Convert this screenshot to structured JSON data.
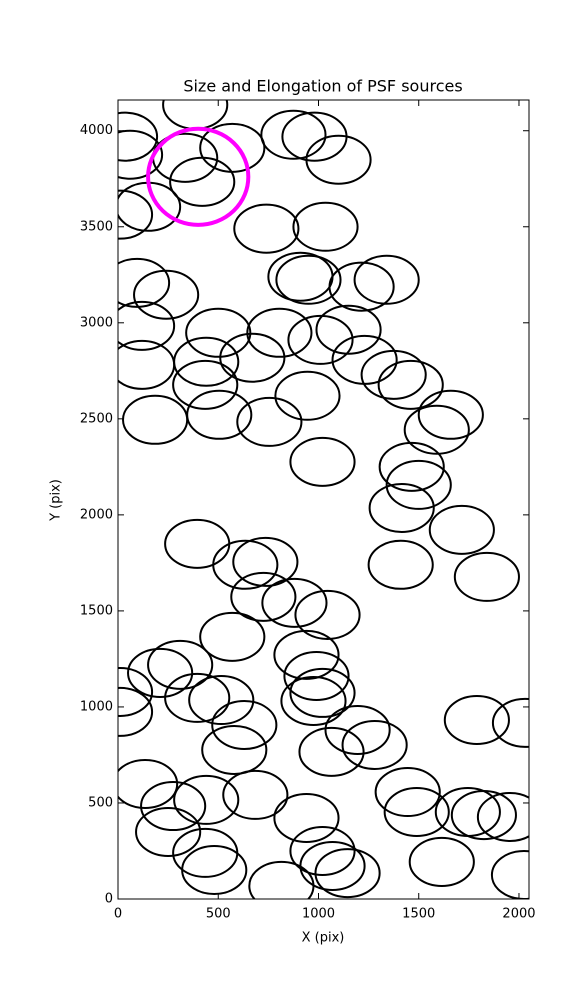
{
  "chart_data": {
    "type": "scatter",
    "marker": "ellipse",
    "title": "Size and Elongation of PSF sources",
    "x_label": "X (pix)",
    "y_label": "Y (pix)",
    "xlim": [
      0,
      2050
    ],
    "ylim": [
      0,
      4160
    ],
    "xticks": [
      0,
      500,
      1000,
      1500,
      2000
    ],
    "yticks": [
      0,
      500,
      1000,
      1500,
      2000,
      2500,
      3000,
      3500,
      4000
    ],
    "series": [
      {
        "color": "#000000",
        "ellipse_width": 320,
        "ellipse_height": 250,
        "x": [
          385,
          35,
          60,
          335,
          570,
          420,
          875,
          980,
          1100,
          10,
          150,
          740,
          1035,
          95,
          240,
          910,
          950,
          1215,
          1340,
          120,
          500,
          805,
          1010,
          1150,
          1230,
          120,
          440,
          670,
          435,
          1375,
          1460,
          945,
          1660,
          1590,
          185,
          505,
          755,
          1020,
          1465,
          1500,
          1415,
          1715,
          1410,
          1840,
          395,
          635,
          735,
          725,
          880,
          1045,
          570,
          210,
          310,
          940,
          10,
          395,
          515,
          990,
          1020,
          975,
          630,
          580,
          1195,
          1065,
          1280,
          1790,
          2030,
          10,
          135,
          275,
          440,
          250,
          685,
          940,
          1445,
          1490,
          1745,
          1825,
          1955,
          1020,
          435,
          480,
          1070,
          1145,
          1615,
          815,
          2025
        ],
        "values": [
          4135,
          3969,
          3875,
          3859,
          3911,
          3734,
          3979,
          3969,
          3849,
          3563,
          3604,
          3490,
          3500,
          3208,
          3146,
          3240,
          3224,
          3188,
          3224,
          2984,
          2948,
          2948,
          2911,
          2964,
          2807,
          2781,
          2797,
          2818,
          2677,
          2729,
          2677,
          2620,
          2521,
          2443,
          2495,
          2521,
          2484,
          2276,
          2250,
          2156,
          2036,
          1922,
          1740,
          1677,
          1849,
          1740,
          1755,
          1573,
          1542,
          1479,
          1365,
          1177,
          1219,
          1271,
          1078,
          1047,
          1036,
          1161,
          1073,
          1031,
          906,
          776,
          880,
          766,
          802,
          932,
          917,
          974,
          599,
          484,
          516,
          349,
          542,
          422,
          557,
          453,
          453,
          437,
          427,
          250,
          240,
          151,
          172,
          135,
          193,
          68,
          125
        ]
      },
      {
        "color": "#ff00ff",
        "ellipse_width": 500,
        "ellipse_height": 500,
        "x": [
          400
        ],
        "values": [
          3760
        ]
      }
    ]
  }
}
